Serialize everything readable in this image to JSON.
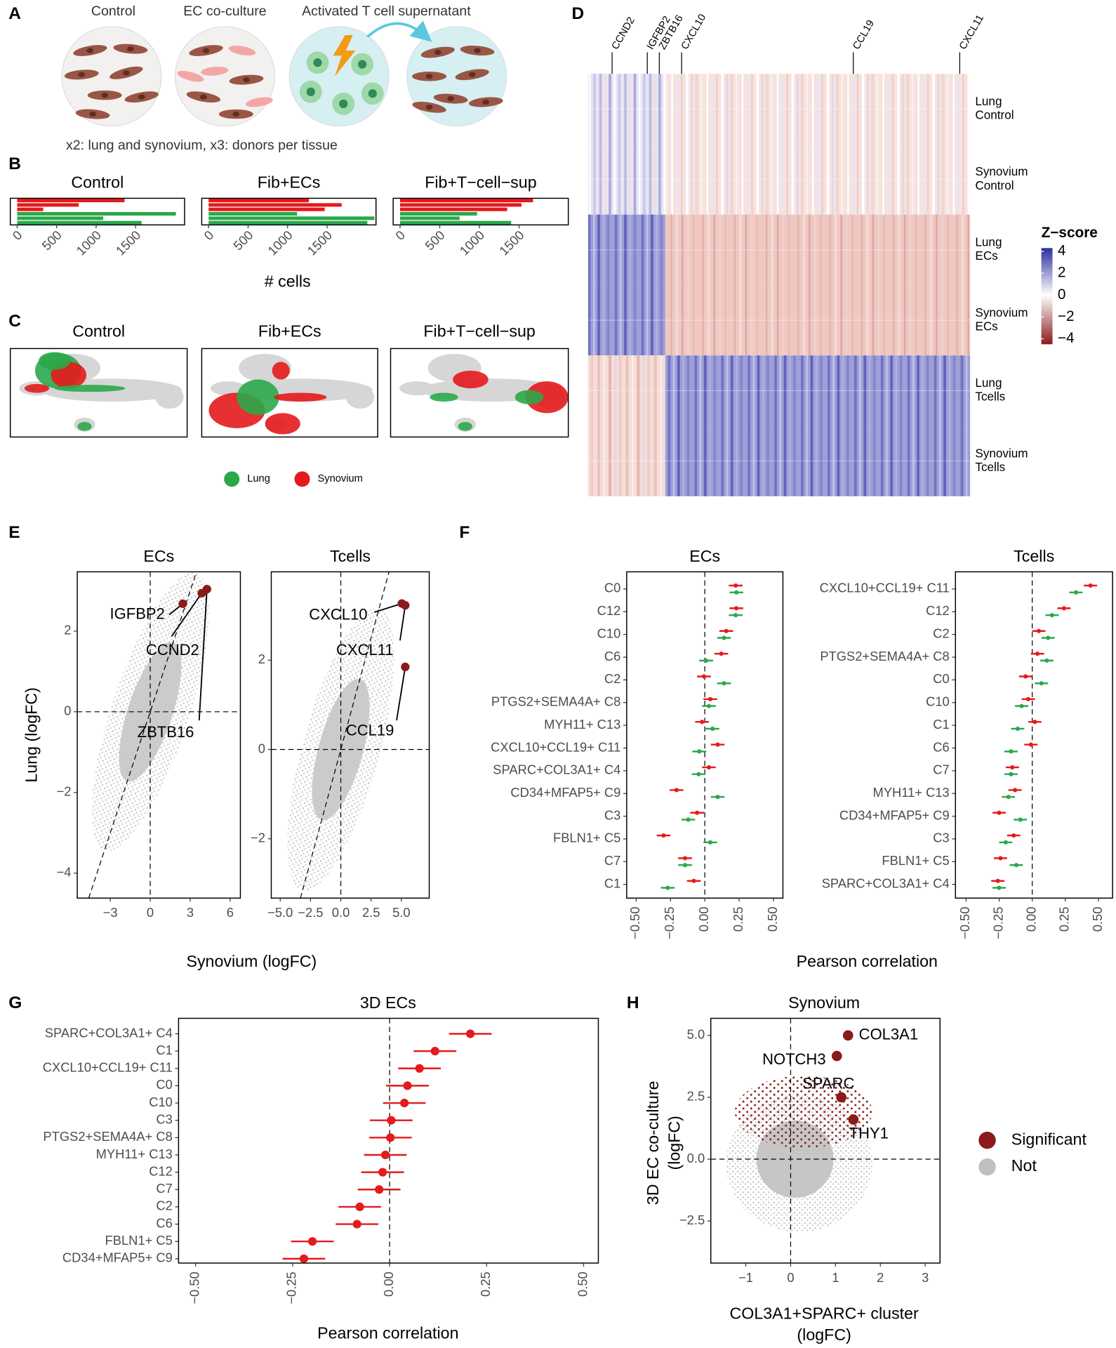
{
  "panels": [
    "A",
    "B",
    "C",
    "D",
    "E",
    "F",
    "G",
    "H"
  ],
  "panel_a": {
    "conditions": [
      "Control",
      "EC co-culture",
      "Activated T cell supernatant"
    ],
    "note": "x2: lung and synovium, x3: donors per tissue"
  },
  "chart_data": [
    {
      "type": "bar",
      "title": "Control",
      "categories": [
        null,
        null,
        null,
        null,
        null,
        null
      ],
      "values": [
        1360,
        780,
        330,
        2010,
        1090,
        1575
      ],
      "colors": [
        "#e41a1c",
        "#e41a1c",
        "#e41a1c",
        "#2ba84a",
        "#2ba84a",
        "#2ba84a"
      ],
      "xlim": [
        -87,
        2120
      ],
      "xticks": [
        0,
        500,
        1000,
        1500
      ]
    },
    {
      "type": "bar",
      "title": "Fib+ECs",
      "xlabel": "# cells",
      "categories": [
        null,
        null,
        null,
        null,
        null,
        null
      ],
      "values": [
        1270,
        1685,
        1470,
        1120,
        2100,
        2010
      ],
      "colors": [
        "#e41a1c",
        "#e41a1c",
        "#e41a1c",
        "#2ba84a",
        "#2ba84a",
        "#2ba84a"
      ],
      "xlim": [
        -87,
        2120
      ],
      "xticks": [
        0,
        500,
        1000,
        1500
      ]
    },
    {
      "type": "bar",
      "title": "Fib+T−cell−sup",
      "categories": [
        null,
        null,
        null,
        null,
        null,
        null
      ],
      "values": [
        1675,
        1530,
        1350,
        970,
        750,
        1400
      ],
      "colors": [
        "#e41a1c",
        "#e41a1c",
        "#e41a1c",
        "#2ba84a",
        "#2ba84a",
        "#2ba84a"
      ],
      "xlim": [
        -87,
        2120
      ],
      "xticks": [
        0,
        500,
        1000,
        1500
      ]
    },
    {
      "type": "umap",
      "titles": [
        "Control",
        "Fib+ECs",
        "Fib+T−cell−sup"
      ],
      "legend": [
        {
          "name": "Lung",
          "color": "#2ba84a"
        },
        {
          "name": "Synovium",
          "color": "#e41a1c"
        }
      ]
    },
    {
      "type": "heatmap",
      "columns": [
        "CCND2",
        "IGFBP2",
        "ZBTB16",
        "CXCL10",
        "CCL19",
        "CXCL11"
      ],
      "rows": [
        [
          "Lung",
          "Control"
        ],
        [
          "Synovium",
          "Control"
        ],
        [
          "Lung",
          "ECs"
        ],
        [
          "Synovium",
          "ECs"
        ],
        [
          "Lung",
          "Tcells"
        ],
        [
          "Synovium",
          "Tcells"
        ]
      ],
      "colorbar": {
        "title": "Z−score",
        "lim": [
          -4.5,
          4.3
        ],
        "ticks": [
          4,
          2,
          0,
          {
            "value": -2,
            "label": "−2"
          },
          {
            "value": -4,
            "label": "−4"
          }
        ],
        "colors": [
          "#8b1a1a",
          "#ffffff",
          "#2b2f9e"
        ]
      }
    },
    {
      "type": "scatter",
      "title": "ECs",
      "xlabel": "Synovium (logFC)",
      "ylabel": "Lung (logFC)",
      "x": [
        2.45,
        3.87,
        4.26
      ],
      "y": [
        2.68,
        2.94,
        3.04
      ],
      "labels": [
        "IGFBP2",
        "CCND2",
        "ZBTB16"
      ],
      "color": "#8b1a1a",
      "xlim": [
        -5.48,
        6.77
      ],
      "ylim": [
        -4.62,
        3.47
      ],
      "xticks": [
        {
          "value": -3,
          "label": "−3"
        },
        0,
        3,
        6
      ],
      "yticks": [
        2,
        0,
        {
          "value": -2,
          "label": "−2"
        },
        {
          "value": -4,
          "label": "−4"
        }
      ],
      "zero_lines": true,
      "identity_line": true
    },
    {
      "type": "scatter",
      "title": "Tcells",
      "x": [
        5.04,
        5.32,
        5.32
      ],
      "y": [
        3.27,
        3.23,
        1.85
      ],
      "labels": [
        "CXCL10",
        "CXCL11",
        "CCL19"
      ],
      "color": "#8b1a1a",
      "xlim": [
        -5.74,
        7.3
      ],
      "ylim": [
        -3.33,
        3.98
      ],
      "xticks": [
        {
          "value": -5,
          "label": "−5.0"
        },
        {
          "value": -2.5,
          "label": "−2.5"
        },
        {
          "value": 0,
          "label": "0.0"
        },
        2.5,
        {
          "value": 5,
          "label": "5.0"
        }
      ],
      "yticks": [
        2,
        0,
        {
          "value": -2,
          "label": "−2"
        }
      ],
      "zero_lines": true,
      "identity_line": true
    },
    {
      "type": "forest",
      "title": "ECs",
      "xlabel": "Pearson correlation",
      "categories": [
        "C0",
        "C12",
        "C10",
        "C6",
        "C2",
        "PTGS2+SEMA4A+ C8",
        "MYH11+ C13",
        "CXCL10+CCL19+ C11",
        "SPARC+COL3A1+ C4",
        "CD34+MFAP5+ C9",
        "C3",
        "FBLN1+ C5",
        "C7",
        "C1"
      ],
      "series": [
        {
          "color": "#e41a1c",
          "values": [
            0.225,
            0.23,
            0.156,
            0.12,
            -0.006,
            0.04,
            -0.02,
            0.094,
            0.03,
            -0.206,
            -0.056,
            -0.3,
            -0.144,
            -0.08
          ],
          "errors": [
            0.05,
            0.05,
            0.05,
            0.05,
            0.05,
            0.05,
            0.05,
            0.05,
            0.05,
            0.05,
            0.05,
            0.05,
            0.05,
            0.05
          ]
        },
        {
          "color": "#2ba84a",
          "values": [
            0.23,
            0.225,
            0.14,
            0.01,
            0.14,
            0.03,
            0.056,
            -0.04,
            -0.045,
            0.094,
            -0.12,
            0.04,
            -0.144,
            -0.27
          ],
          "errors": [
            0.05,
            0.05,
            0.05,
            0.05,
            0.05,
            0.05,
            0.05,
            0.05,
            0.05,
            0.05,
            0.05,
            0.05,
            0.05,
            0.05
          ]
        }
      ],
      "xlim": [
        -0.569,
        0.569
      ],
      "xticks": [
        {
          "value": -0.5,
          "label": "−0.50"
        },
        {
          "value": -0.25,
          "label": "−0.25"
        },
        {
          "value": 0,
          "label": "0.00"
        },
        0.25,
        {
          "value": 0.5,
          "label": "0.50"
        }
      ],
      "zero_line": true
    },
    {
      "type": "forest",
      "title": "Tcells",
      "categories": [
        "CXCL10+CCL19+ C11",
        "C12",
        "C2",
        "PTGS2+SEMA4A+ C8",
        "C0",
        "C10",
        "C1",
        "C6",
        "C7",
        "MYH11+ C13",
        "CD34+MFAP5+ C9",
        "C3",
        "FBLN1+ C5",
        "SPARC+COL3A1+ C4"
      ],
      "series": [
        {
          "color": "#e41a1c",
          "values": [
            0.44,
            0.24,
            0.05,
            0.04,
            -0.05,
            -0.03,
            0.02,
            -0.01,
            -0.15,
            -0.13,
            -0.25,
            -0.14,
            -0.24,
            -0.26
          ],
          "errors": [
            0.05,
            0.05,
            0.05,
            0.05,
            0.05,
            0.05,
            0.05,
            0.05,
            0.05,
            0.05,
            0.05,
            0.05,
            0.05,
            0.05
          ]
        },
        {
          "color": "#2ba84a",
          "values": [
            0.33,
            0.15,
            0.12,
            0.11,
            0.07,
            -0.08,
            -0.11,
            -0.16,
            -0.16,
            -0.18,
            -0.09,
            -0.2,
            -0.12,
            -0.25
          ],
          "errors": [
            0.05,
            0.05,
            0.05,
            0.05,
            0.05,
            0.05,
            0.05,
            0.05,
            0.05,
            0.05,
            0.05,
            0.05,
            0.05,
            0.05
          ]
        }
      ],
      "xlim": [
        -0.58,
        0.607
      ],
      "xticks": [
        {
          "value": -0.5,
          "label": "−0.50"
        },
        {
          "value": -0.25,
          "label": "−0.25"
        },
        {
          "value": 0,
          "label": "0.00"
        },
        0.25,
        {
          "value": 0.5,
          "label": "0.50"
        }
      ],
      "zero_line": true
    },
    {
      "type": "forest",
      "title": "3D ECs",
      "xlabel": "Pearson correlation",
      "categories": [
        "SPARC+COL3A1+ C4",
        "C1",
        "CXCL10+CCL19+ C11",
        "C0",
        "C10",
        "C3",
        "PTGS2+SEMA4A+ C8",
        "MYH11+ C13",
        "C12",
        "C7",
        "C2",
        "C6",
        "FBLN1+ C5",
        "CD34+MFAP5+ C9"
      ],
      "series": [
        {
          "color": "#e41a1c",
          "values": [
            0.208,
            0.117,
            0.077,
            0.046,
            0.038,
            0.004,
            0.002,
            -0.011,
            -0.018,
            -0.027,
            -0.077,
            -0.084,
            -0.199,
            -0.221
          ],
          "errors": [
            0.055,
            0.055,
            0.055,
            0.055,
            0.055,
            0.055,
            0.055,
            0.055,
            0.055,
            0.055,
            0.055,
            0.055,
            0.055,
            0.055
          ]
        }
      ],
      "xlim": [
        -0.544,
        0.538
      ],
      "xticks": [
        {
          "value": -0.5,
          "label": "−0.50"
        },
        {
          "value": -0.25,
          "label": "−0.25"
        },
        {
          "value": 0,
          "label": "0.00"
        },
        0.25,
        {
          "value": 0.5,
          "label": "0.50"
        }
      ],
      "zero_line": true
    },
    {
      "type": "scatter",
      "title": "Synovium",
      "xlabel": [
        "COL3A1+SPARC+ cluster",
        "(logFC)"
      ],
      "ylabel": [
        "3D EC co-culture",
        "(logFC)"
      ],
      "x": [
        1.28,
        1.03,
        1.13,
        1.4
      ],
      "y": [
        5.0,
        4.17,
        2.5,
        1.6
      ],
      "labels": [
        "COL3A1",
        "NOTCH3",
        "SPARC",
        "THY1"
      ],
      "color": "#8b1a1a",
      "xlim": [
        -1.78,
        3.33
      ],
      "ylim": [
        -4.2,
        5.69
      ],
      "xticks": [
        {
          "value": -1,
          "label": "−1"
        },
        0,
        1,
        2,
        3
      ],
      "yticks": [
        {
          "value": 5,
          "label": "5.0"
        },
        2.5,
        {
          "value": 0,
          "label": "0.0"
        },
        {
          "value": -2.5,
          "label": "−2.5"
        }
      ],
      "zero_lines": true,
      "legend": [
        {
          "name": "Significant",
          "color": "#8b1a1a"
        },
        {
          "name": "Not",
          "color": "#c0c0c0"
        }
      ]
    }
  ]
}
